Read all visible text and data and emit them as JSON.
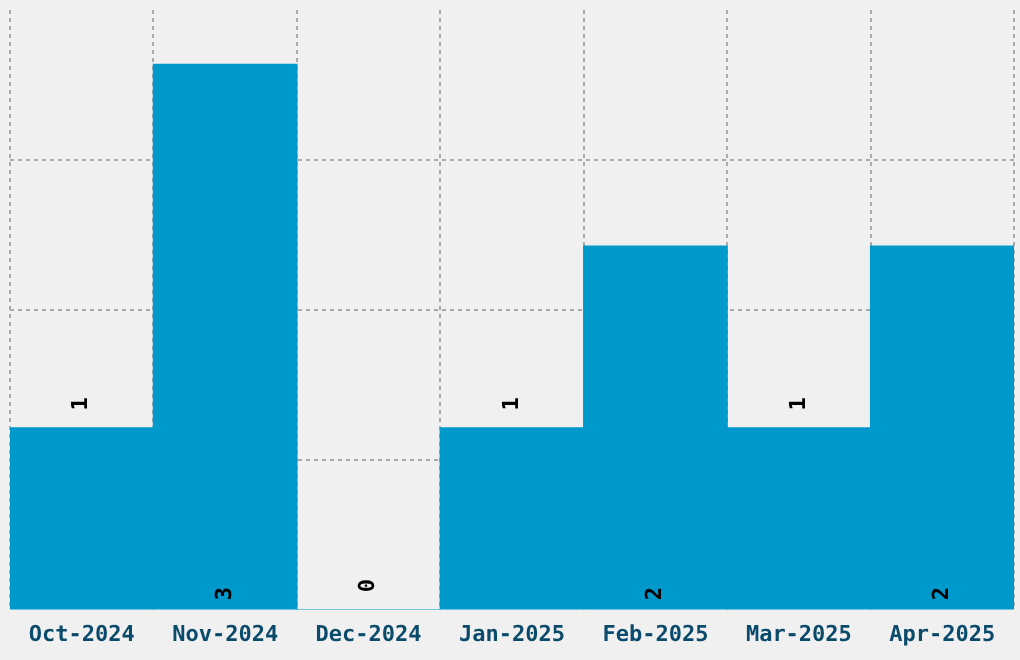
{
  "chart_data": {
    "type": "bar",
    "categories": [
      "Oct-2024",
      "Nov-2024",
      "Dec-2024",
      "Jan-2025",
      "Feb-2025",
      "Mar-2025",
      "Apr-2025"
    ],
    "values": [
      1,
      3,
      0,
      1,
      2,
      1,
      2
    ],
    "color": "#0099cc",
    "data_labels": true,
    "grid": true,
    "ylim": [
      0,
      3.3
    ],
    "yticks": [
      {
        "value": 0.825,
        "label": null
      },
      {
        "value": 1.65,
        "label": null
      },
      {
        "value": 2.475,
        "label": null
      }
    ],
    "tick_labels": "x"
  }
}
